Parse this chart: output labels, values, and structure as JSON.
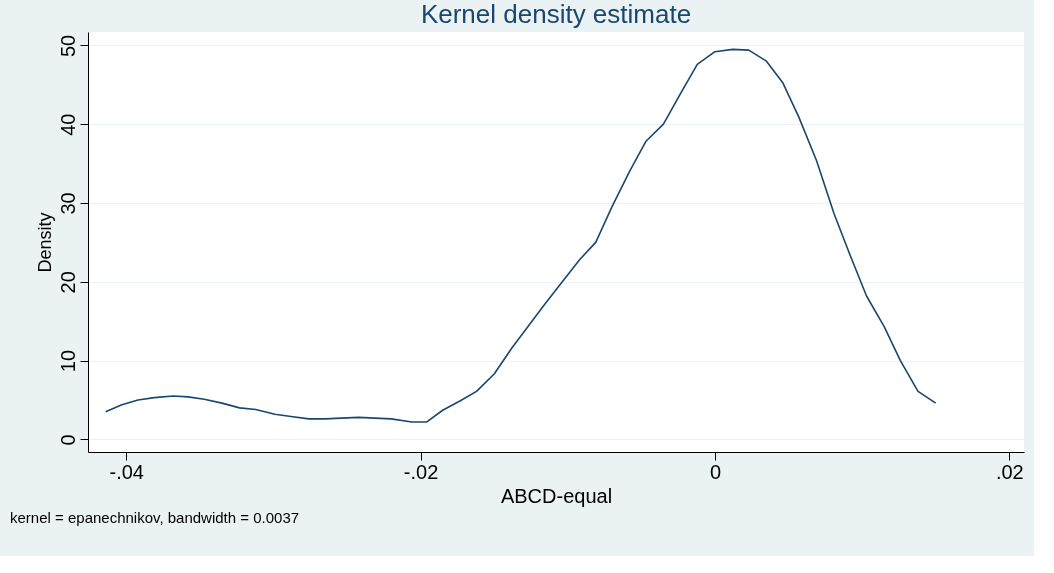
{
  "chart_data": {
    "type": "line",
    "title": "Kernel density estimate",
    "xlabel": "ABCD-equal",
    "ylabel": "Density",
    "annotations": [
      "kernel = epanechnikov, bandwidth = 0.0037"
    ],
    "x": [
      -0.0414,
      -0.0403,
      -0.0392,
      -0.0381,
      -0.0368,
      -0.0358,
      -0.0347,
      -0.0335,
      -0.0323,
      -0.0312,
      -0.0299,
      -0.0288,
      -0.0276,
      -0.0265,
      -0.0254,
      -0.0242,
      -0.0231,
      -0.022,
      -0.0206,
      -0.0196,
      -0.0185,
      -0.0173,
      -0.0162,
      -0.015,
      -0.0138,
      -0.0115,
      -0.0092,
      -0.0081,
      -0.007,
      -0.0058,
      -0.0047,
      -0.0035,
      -0.0024,
      -0.0012,
      0.0,
      0.0012,
      0.0023,
      0.0035,
      0.0046,
      0.0057,
      0.0069,
      0.0081,
      0.0092,
      0.0103,
      0.0115,
      0.0126,
      0.0138,
      0.015
    ],
    "series": [
      {
        "color": "#1a476f",
        "values": [
          3.5,
          4.4,
          5.0,
          5.3,
          5.5,
          5.4,
          5.1,
          4.6,
          4.0,
          3.8,
          3.2,
          2.9,
          2.6,
          2.6,
          2.7,
          2.8,
          2.7,
          2.6,
          2.2,
          2.2,
          3.7,
          4.9,
          6.1,
          8.3,
          11.6,
          17.3,
          22.8,
          25.0,
          29.5,
          34.0,
          37.8,
          40.0,
          43.7,
          47.6,
          49.2,
          49.5,
          49.4,
          48.0,
          45.3,
          40.9,
          35.4,
          28.6,
          23.3,
          18.2,
          14.3,
          10.0,
          6.1,
          4.6
        ]
      }
    ],
    "xlim": [
      -0.0426,
      0.021
    ],
    "ylim": [
      -1.6,
      51.7
    ],
    "xticks": [
      {
        "value": -0.04,
        "label": "-.04"
      },
      {
        "value": -0.02,
        "label": "-.02"
      },
      0,
      {
        "value": 0.02,
        "label": ".02"
      }
    ],
    "yticks": [
      0,
      10,
      20,
      30,
      40,
      50
    ],
    "grid": "y",
    "marker": "none",
    "line_style": "solid"
  }
}
